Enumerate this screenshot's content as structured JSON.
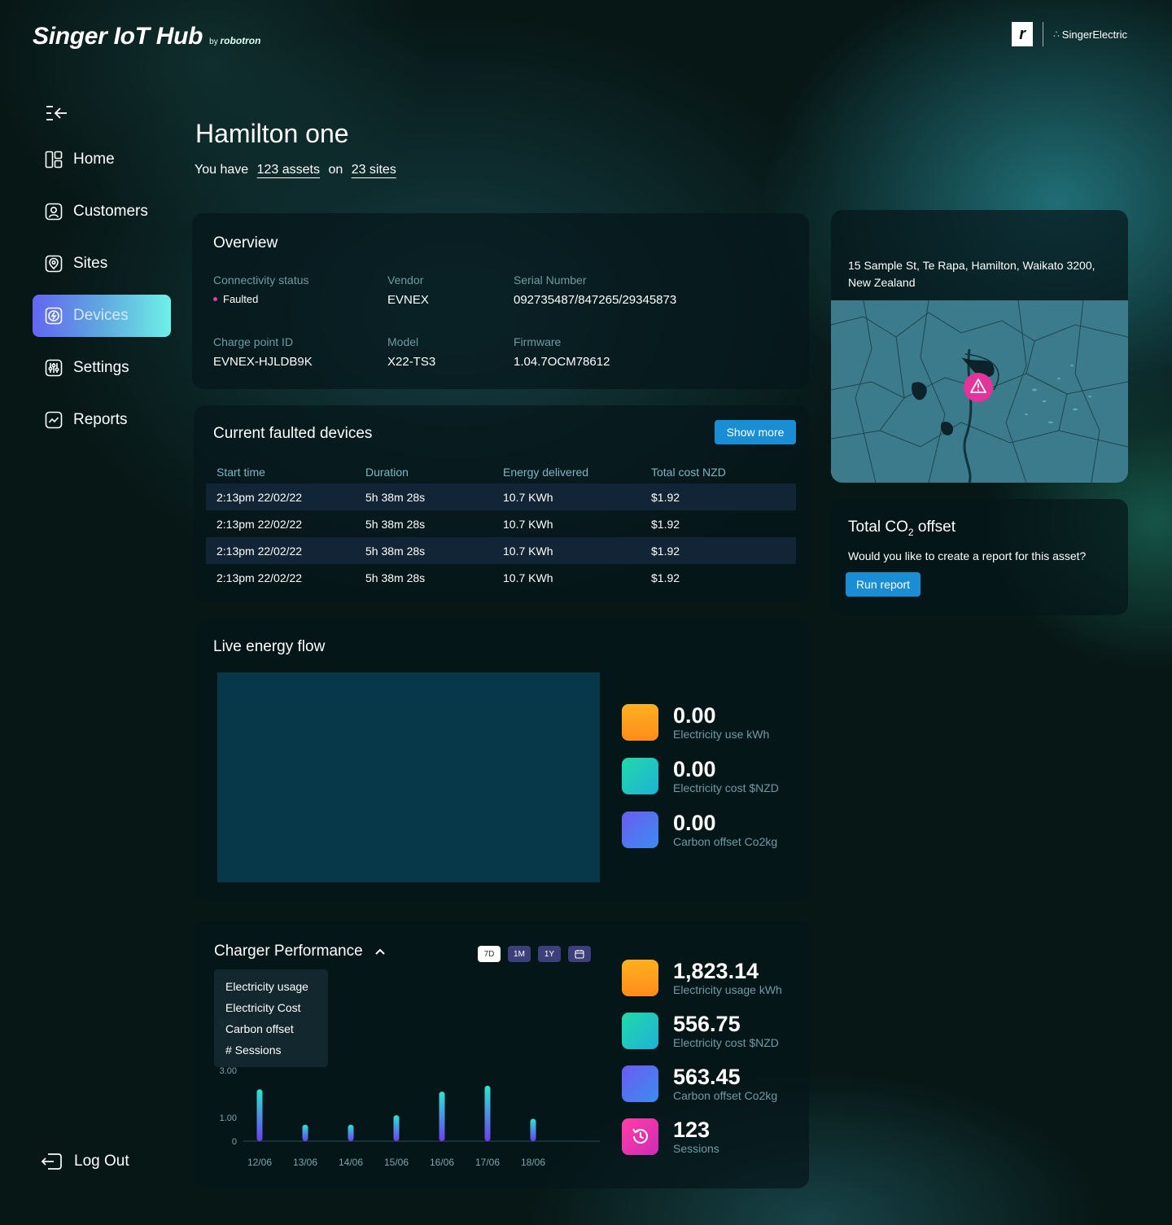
{
  "brand": {
    "title": "Singer IoT Hub",
    "by": "by",
    "company": "robotron",
    "partner_letter": "r",
    "partner_name": "SingerElectric"
  },
  "sidebar": {
    "items": [
      {
        "label": "Home",
        "icon": "layout-icon"
      },
      {
        "label": "Customers",
        "icon": "user-icon"
      },
      {
        "label": "Sites",
        "icon": "location-pin-icon"
      },
      {
        "label": "Devices",
        "icon": "bolt-icon",
        "active": true
      },
      {
        "label": "Settings",
        "icon": "sliders-icon"
      },
      {
        "label": "Reports",
        "icon": "chart-line-icon"
      }
    ],
    "logout": "Log Out"
  },
  "page": {
    "title": "Hamilton one",
    "sub_prefix": "You have",
    "assets": "123 assets",
    "on": "on",
    "sites": "23 sites"
  },
  "overview": {
    "title": "Overview",
    "fields": {
      "connectivity": {
        "label": "Connectivity status",
        "value": "Faulted",
        "color": "#e040a0"
      },
      "vendor": {
        "label": "Vendor",
        "value": "EVNEX"
      },
      "serial": {
        "label": "Serial Number",
        "value": "092735487/847265/29345873"
      },
      "charge_point": {
        "label": "Charge point ID",
        "value": "EVNEX-HJLDB9K"
      },
      "model": {
        "label": "Model",
        "value": "X22-TS3"
      },
      "firmware": {
        "label": "Firmware",
        "value": "1.04.7OCM78612"
      }
    }
  },
  "faulted": {
    "title": "Current faulted devices",
    "show_more": "Show more",
    "columns": [
      "Start time",
      "Duration",
      "Energy delivered",
      "Total cost NZD"
    ],
    "rows": [
      [
        "2:13pm 22/02/22",
        "5h 38m 28s",
        "10.7 KWh",
        "$1.92"
      ],
      [
        "2:13pm 22/02/22",
        "5h 38m 28s",
        "10.7 KWh",
        "$1.92"
      ],
      [
        "2:13pm 22/02/22",
        "5h 38m 28s",
        "10.7 KWh",
        "$1.92"
      ],
      [
        "2:13pm 22/02/22",
        "5h 38m 28s",
        "10.7 KWh",
        "$1.92"
      ]
    ]
  },
  "map": {
    "address": "15 Sample St, Te Rapa, Hamilton, Waikato 3200, New Zealand",
    "marker_icon": "warning-icon"
  },
  "co2": {
    "title_prefix": "Total CO",
    "title_sub": "2",
    "title_suffix": " offset",
    "text": "Would you like to create a report for this asset?",
    "button": "Run report"
  },
  "live": {
    "title": "Live energy flow",
    "metrics": [
      {
        "value": "0.00",
        "label": "Electricity use kWh",
        "color": "#ff9a1c"
      },
      {
        "value": "0.00",
        "label": "Electricity cost $NZD",
        "color": "#20c8c0"
      },
      {
        "value": "0.00",
        "label": "Carbon offset Co2kg",
        "color": "#4f7cf0"
      }
    ]
  },
  "perf": {
    "title": "Charger Performance",
    "ranges": [
      "7D",
      "1M",
      "1Y"
    ],
    "calendar_icon": "calendar-icon",
    "dropdown": [
      "Electricity usage",
      "Electricity Cost",
      "Carbon offset",
      "# Sessions"
    ],
    "metrics": [
      {
        "value": "1,823.14",
        "label": "Electricity usage kWh",
        "color": "#ff9a1c"
      },
      {
        "value": "556.75",
        "label": "Electricity cost $NZD",
        "color": "#20c8c0"
      },
      {
        "value": "563.45",
        "label": "Carbon offset Co2kg",
        "color": "#4f7cf0"
      },
      {
        "value": "123",
        "label": "Sessions",
        "color": "#e030b0",
        "icon": "history-icon"
      }
    ]
  },
  "chart_data": {
    "type": "bar",
    "categories": [
      "12/06",
      "13/06",
      "14/06",
      "15/06",
      "16/06",
      "17/06",
      "18/06"
    ],
    "values": [
      2.2,
      0.7,
      0.7,
      1.1,
      2.1,
      2.35,
      0.95
    ],
    "yticks": [
      "0",
      "1.00",
      "3.00",
      "5.00"
    ],
    "ylim": [
      0,
      5
    ],
    "grid": false,
    "legend": "none"
  }
}
